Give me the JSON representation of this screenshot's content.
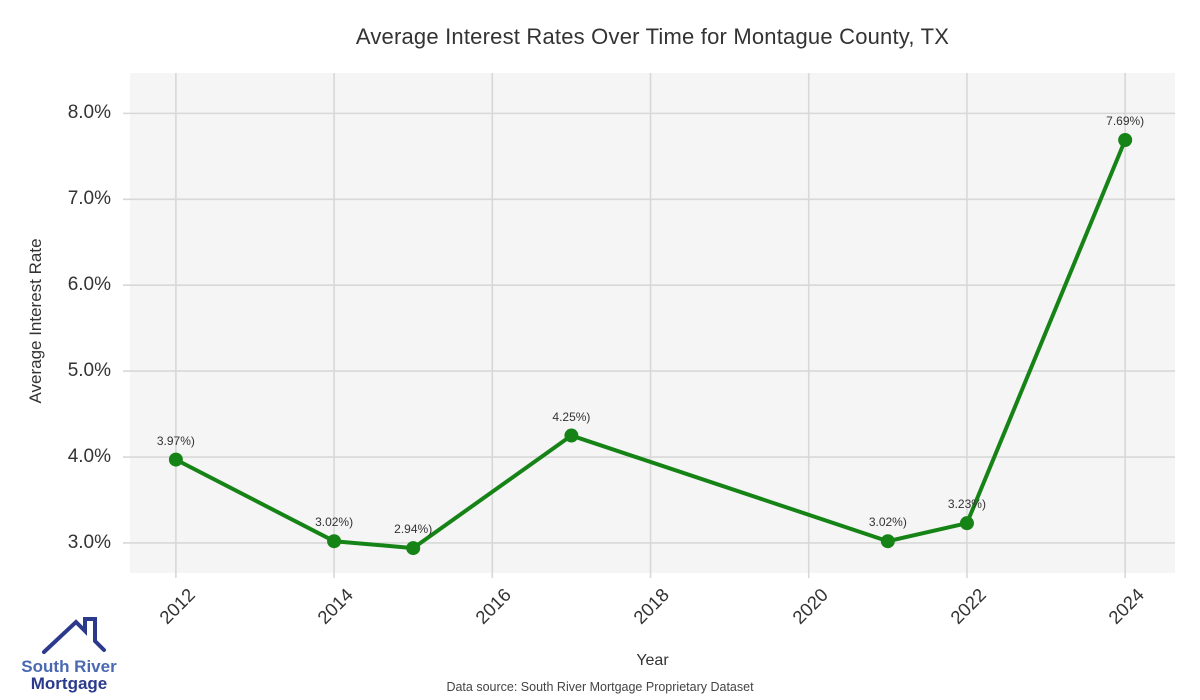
{
  "title": "Average Interest Rates Over Time for Montague County, TX",
  "footer": {
    "text": "Data source: South River Mortgage Proprietary Dataset"
  },
  "logo": {
    "line1": "South River",
    "line2": "Mortgage",
    "line1_color": "#4a69b2",
    "line2_color": "#2b3a8c",
    "roof_color": "#2b3a8c",
    "roof_icon": "house-roof-with-chimney"
  },
  "chart_data": {
    "type": "line",
    "title": "Average Interest Rates Over Time for Montague County, TX",
    "xlabel": "Year",
    "ylabel": "Average Interest Rate",
    "x": [
      2012,
      2014,
      2015,
      2017,
      2021,
      2022,
      2024
    ],
    "values": [
      3.97,
      3.02,
      2.94,
      4.25,
      3.02,
      3.23,
      7.69
    ],
    "point_labels": [
      "3.97%)",
      "3.02%)",
      "2.94%)",
      "4.25%)",
      "3.02%)",
      "3.23%)",
      "7.69%)"
    ],
    "x_ticks": [
      {
        "value": 2012,
        "label": "2012"
      },
      {
        "value": 2014,
        "label": "2014"
      },
      {
        "value": 2016,
        "label": "2016"
      },
      {
        "value": 2018,
        "label": "2018"
      },
      {
        "value": 2020,
        "label": "2020"
      },
      {
        "value": 2022,
        "label": "2022"
      },
      {
        "value": 2024,
        "label": "2024"
      }
    ],
    "y_ticks": [
      {
        "value": 3,
        "label": "3.0%"
      },
      {
        "value": 4,
        "label": "4.0%"
      },
      {
        "value": 5,
        "label": "5.0%"
      },
      {
        "value": 6,
        "label": "6.0%"
      },
      {
        "value": 7,
        "label": "7.0%"
      },
      {
        "value": 8,
        "label": "8.0%"
      }
    ],
    "x_range": [
      2011.42,
      2024.63
    ],
    "y_range": [
      2.65,
      8.47
    ],
    "grid": true,
    "legend": "none",
    "line_color": "#168316",
    "marker_color": "#168316",
    "plot_bg": "#f5f5f6",
    "grid_color": "#d8d8d8",
    "line_width": 4,
    "marker_radius": 7
  }
}
